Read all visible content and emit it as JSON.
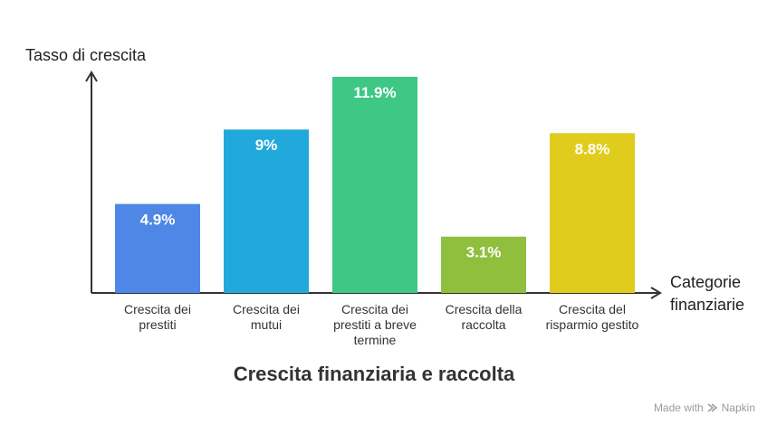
{
  "chart_data": {
    "type": "bar",
    "title": "Crescita finanziaria e raccolta",
    "ylabel": "Tasso di crescita",
    "xlabel": "Categorie finanziarie",
    "ylim": [
      0,
      12.8
    ],
    "categories": [
      "Crescita dei prestiti",
      "Crescita dei mutui",
      "Crescita dei prestiti a breve termine",
      "Crescita della raccolta",
      "Crescita del risparmio gestito"
    ],
    "category_lines": [
      [
        "Crescita dei",
        "prestiti"
      ],
      [
        "Crescita dei",
        "mutui"
      ],
      [
        "Crescita dei",
        "prestiti a breve",
        "termine"
      ],
      [
        "Crescita della",
        "raccolta"
      ],
      [
        "Crescita del",
        "risparmio gestito"
      ]
    ],
    "values": [
      4.9,
      9,
      11.9,
      3.1,
      8.8
    ],
    "value_labels": [
      "4.9%",
      "9%",
      "11.9%",
      "3.1%",
      "8.8%"
    ],
    "colors": [
      "#4f87e6",
      "#22a9dc",
      "#3ec785",
      "#8fbf3c",
      "#e0cc1c"
    ],
    "grid": false,
    "legend": "none"
  },
  "footer": {
    "made_with": "Made with",
    "brand": "Napkin"
  }
}
